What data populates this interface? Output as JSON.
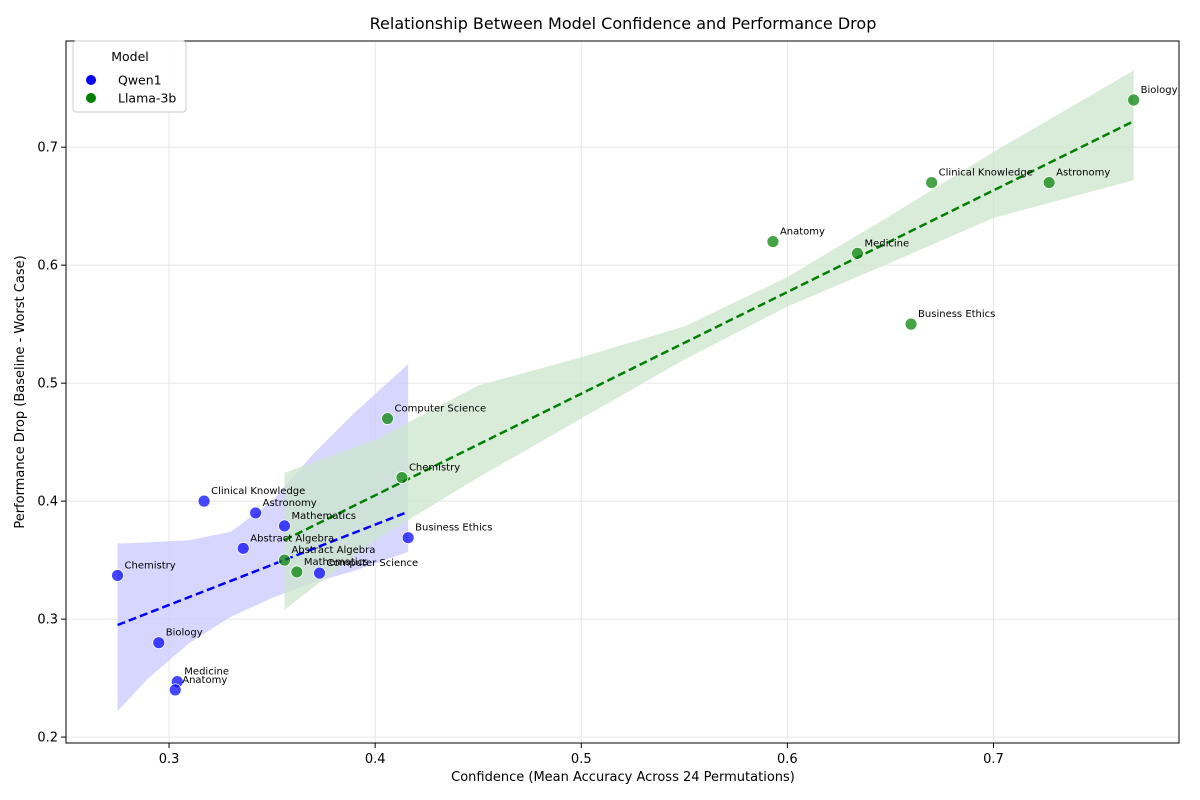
{
  "chart_data": {
    "type": "scatter",
    "title": "Relationship Between Model Confidence and Performance Drop",
    "xlabel": "Confidence (Mean Accuracy Across 24 Permutations)",
    "ylabel": "Performance Drop (Baseline - Worst Case)",
    "xlim": [
      0.25,
      0.79
    ],
    "ylim": [
      0.195,
      0.79
    ],
    "xticks": [
      0.3,
      0.4,
      0.5,
      0.6,
      0.7
    ],
    "yticks": [
      0.2,
      0.3,
      0.4,
      0.5,
      0.6,
      0.7
    ],
    "grid": true,
    "legend": {
      "title": "Model",
      "position": "top-left"
    },
    "series": [
      {
        "name": "Qwen1",
        "color": "#0000ff",
        "points": [
          {
            "label": "Chemistry",
            "x": 0.275,
            "y": 0.337
          },
          {
            "label": "Biology",
            "x": 0.295,
            "y": 0.28
          },
          {
            "label": "Medicine",
            "x": 0.304,
            "y": 0.247
          },
          {
            "label": "Anatomy",
            "x": 0.303,
            "y": 0.24
          },
          {
            "label": "Clinical Knowledge",
            "x": 0.317,
            "y": 0.4
          },
          {
            "label": "Abstract Algebra",
            "x": 0.336,
            "y": 0.36
          },
          {
            "label": "Astronomy",
            "x": 0.342,
            "y": 0.39
          },
          {
            "label": "Mathematics",
            "x": 0.356,
            "y": 0.379
          },
          {
            "label": "Computer Science",
            "x": 0.373,
            "y": 0.339
          },
          {
            "label": "Business Ethics",
            "x": 0.416,
            "y": 0.369
          }
        ],
        "trend": {
          "x": [
            0.275,
            0.416
          ],
          "y": [
            0.295,
            0.391
          ]
        },
        "ci": {
          "x": [
            0.275,
            0.29,
            0.31,
            0.33,
            0.35,
            0.37,
            0.39,
            0.416
          ],
          "lower": [
            0.222,
            0.25,
            0.28,
            0.302,
            0.318,
            0.331,
            0.341,
            0.357
          ],
          "upper": [
            0.364,
            0.365,
            0.367,
            0.374,
            0.4,
            0.44,
            0.475,
            0.516
          ]
        }
      },
      {
        "name": "Llama-3b",
        "color": "#008000",
        "points": [
          {
            "label": "Abstract Algebra",
            "x": 0.356,
            "y": 0.35
          },
          {
            "label": "Mathematics",
            "x": 0.362,
            "y": 0.34
          },
          {
            "label": "Computer Science",
            "x": 0.406,
            "y": 0.47
          },
          {
            "label": "Chemistry",
            "x": 0.413,
            "y": 0.42
          },
          {
            "label": "Anatomy",
            "x": 0.593,
            "y": 0.62
          },
          {
            "label": "Medicine",
            "x": 0.634,
            "y": 0.61
          },
          {
            "label": "Business Ethics",
            "x": 0.66,
            "y": 0.55
          },
          {
            "label": "Clinical Knowledge",
            "x": 0.67,
            "y": 0.67
          },
          {
            "label": "Astronomy",
            "x": 0.727,
            "y": 0.67
          },
          {
            "label": "Biology",
            "x": 0.768,
            "y": 0.74
          }
        ],
        "trend": {
          "x": [
            0.356,
            0.768
          ],
          "y": [
            0.367,
            0.722
          ]
        },
        "ci": {
          "x": [
            0.356,
            0.4,
            0.45,
            0.5,
            0.55,
            0.6,
            0.65,
            0.7,
            0.768
          ],
          "lower": [
            0.308,
            0.367,
            0.42,
            0.47,
            0.52,
            0.565,
            0.602,
            0.64,
            0.672
          ],
          "upper": [
            0.424,
            0.452,
            0.498,
            0.522,
            0.548,
            0.59,
            0.642,
            0.696,
            0.765
          ]
        }
      }
    ]
  }
}
